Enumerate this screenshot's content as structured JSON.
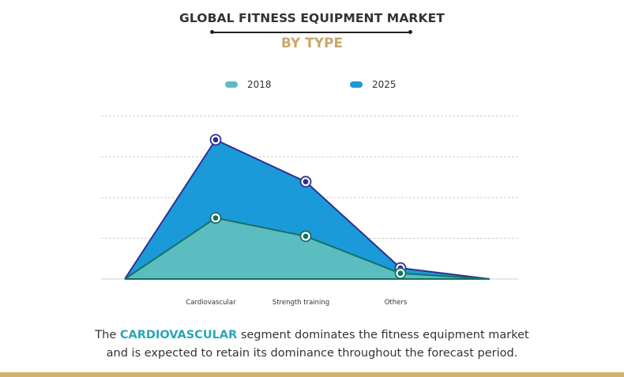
{
  "header": {
    "title": "GLOBAL FITNESS EQUIPMENT MARKET",
    "subtitle": "BY TYPE"
  },
  "colors": {
    "title": "#333333",
    "subtitle": "#c9a86a",
    "series_2018_fill": "#5bbdbf",
    "series_2018_line": "#167065",
    "series_2025_fill": "#1a9ad9",
    "series_2025_line": "#2e3192",
    "highlight": "#2aa7b8",
    "footer": "#d2b06f"
  },
  "chart_data": {
    "type": "area",
    "title": "GLOBAL FITNESS EQUIPMENT MARKET",
    "subtitle": "BY TYPE",
    "xlabel": "",
    "ylabel": "",
    "categories": [
      "Cardiovascular",
      "Strength training",
      "Others"
    ],
    "series": [
      {
        "name": "2018",
        "values": [
          1.5,
          1.05,
          0.14
        ]
      },
      {
        "name": "2025",
        "values": [
          3.42,
          2.39,
          0.27
        ]
      }
    ],
    "ylim": [
      0,
      4
    ],
    "grid": true,
    "legend_position": "top",
    "value_units": "relative (no axis values shown)"
  },
  "legend": [
    {
      "label": "2018"
    },
    {
      "label": "2025"
    }
  ],
  "caption": {
    "prefix": "The ",
    "highlight": "CARDIOVASCULAR",
    "line1_rest": " segment dominates the fitness equipment market",
    "line2": "and is expected to retain its dominance throughout the forecast period."
  }
}
